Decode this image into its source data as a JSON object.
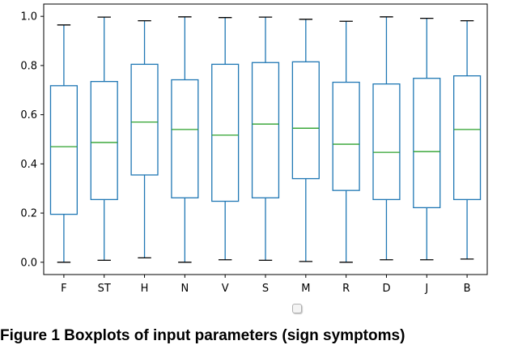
{
  "chart_data": {
    "type": "boxplot",
    "title": "",
    "xlabel": "",
    "ylabel": "",
    "ylim": [
      -0.05,
      1.05
    ],
    "yticks": [
      0.0,
      0.2,
      0.4,
      0.6,
      0.8,
      1.0
    ],
    "ytick_labels": [
      "0.0",
      "0.2",
      "0.4",
      "0.6",
      "0.8",
      "1.0"
    ],
    "categories": [
      "F",
      "ST",
      "H",
      "N",
      "V",
      "S",
      "M",
      "R",
      "D",
      "J",
      "B"
    ],
    "boxes": [
      {
        "label": "F",
        "min": 0.0,
        "q1": 0.195,
        "median": 0.47,
        "q3": 0.718,
        "max": 0.965
      },
      {
        "label": "ST",
        "min": 0.008,
        "q1": 0.255,
        "median": 0.487,
        "q3": 0.735,
        "max": 0.997
      },
      {
        "label": "H",
        "min": 0.018,
        "q1": 0.355,
        "median": 0.57,
        "q3": 0.805,
        "max": 0.982
      },
      {
        "label": "N",
        "min": 0.0,
        "q1": 0.262,
        "median": 0.54,
        "q3": 0.742,
        "max": 0.998
      },
      {
        "label": "V",
        "min": 0.01,
        "q1": 0.248,
        "median": 0.517,
        "q3": 0.805,
        "max": 0.995
      },
      {
        "label": "S",
        "min": 0.008,
        "q1": 0.262,
        "median": 0.562,
        "q3": 0.812,
        "max": 0.997
      },
      {
        "label": "M",
        "min": 0.003,
        "q1": 0.34,
        "median": 0.545,
        "q3": 0.815,
        "max": 0.988
      },
      {
        "label": "R",
        "min": 0.0,
        "q1": 0.292,
        "median": 0.48,
        "q3": 0.732,
        "max": 0.98
      },
      {
        "label": "D",
        "min": 0.01,
        "q1": 0.255,
        "median": 0.447,
        "q3": 0.725,
        "max": 0.998
      },
      {
        "label": "J",
        "min": 0.01,
        "q1": 0.222,
        "median": 0.45,
        "q3": 0.748,
        "max": 0.992
      },
      {
        "label": "B",
        "min": 0.013,
        "q1": 0.255,
        "median": 0.54,
        "q3": 0.758,
        "max": 0.982
      }
    ],
    "grid": false,
    "box_color": "#1f77b4",
    "median_color": "#2ca02c",
    "whisker_cap_color": "#000000"
  },
  "caption": "Figure 1 Boxplots of input parameters (sign symptoms)"
}
